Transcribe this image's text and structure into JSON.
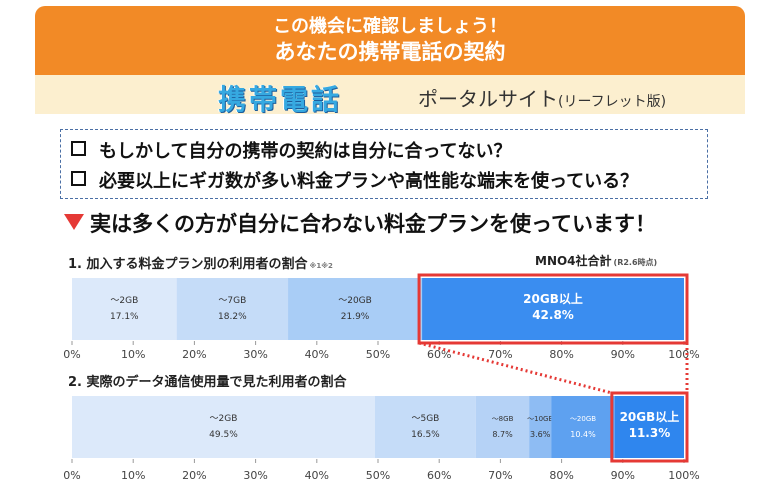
{
  "banner": {
    "line1": "この機会に確認しましょう！",
    "line2": "あなたの携帯電話の契約",
    "portal_kanji": "携帯電話",
    "portal_rest": "ポータルサイト",
    "portal_suffix": "(リーフレット版)"
  },
  "checklist": [
    "もしかして自分の携帯の契約は自分に合ってない？",
    "必要以上にギガ数が多い料金プランや高性能な端末を使っている？"
  ],
  "headline": "実は多くの方が自分に合わない料金プランを使っています！",
  "colors": {
    "banner": "#f28a26",
    "highlight_box": "#e53935",
    "seg_light": "#dce9fa",
    "seg_mid": "#c5dcf8",
    "seg_mid2": "#a9cdf6",
    "seg_strong": "#3a8df0"
  },
  "chart_data": [
    {
      "type": "bar",
      "orientation": "horizontal-stacked-100",
      "title": "1. 加入する料金プラン別の利用者の割合",
      "note": "※1※2",
      "subtitle": "MNO4社合計",
      "subtitle_note": "(R2.6時点)",
      "xlim": [
        0,
        100
      ],
      "ticks": [
        "0%",
        "10%",
        "20%",
        "30%",
        "40%",
        "50%",
        "60%",
        "70%",
        "80%",
        "90%",
        "100%"
      ],
      "segments": [
        {
          "label": "～2GB",
          "value": 17.1,
          "value_text": "17.1%",
          "color": "#dce9fa",
          "text_color": "#333333"
        },
        {
          "label": "～7GB",
          "value": 18.2,
          "value_text": "18.2%",
          "color": "#c5dcf8",
          "text_color": "#333333"
        },
        {
          "label": "～20GB",
          "value": 21.9,
          "value_text": "21.9%",
          "color": "#a9cdf6",
          "text_color": "#333333"
        },
        {
          "label": "20GB以上",
          "value": 42.8,
          "value_text": "42.8%",
          "color": "#3a8df0",
          "text_color": "#ffffff",
          "highlight": true
        }
      ]
    },
    {
      "type": "bar",
      "orientation": "horizontal-stacked-100",
      "title": "2. 実際のデータ通信使用量で見た利用者の割合",
      "xlim": [
        0,
        100
      ],
      "ticks": [
        "0%",
        "10%",
        "20%",
        "30%",
        "40%",
        "50%",
        "60%",
        "70%",
        "80%",
        "90%",
        "100%"
      ],
      "segments": [
        {
          "label": "～2GB",
          "value": 49.5,
          "value_text": "49.5%",
          "color": "#dce9fa",
          "text_color": "#333333"
        },
        {
          "label": "～5GB",
          "value": 16.5,
          "value_text": "16.5%",
          "color": "#c5dcf8",
          "text_color": "#333333"
        },
        {
          "label": "～8GB",
          "value": 8.7,
          "value_text": "8.7%",
          "color": "#b5d2f6",
          "text_color": "#333333",
          "small": true
        },
        {
          "label": "～10GB",
          "value": 3.6,
          "value_text": "3.6%",
          "color": "#8ebcf3",
          "text_color": "#333333",
          "small": true
        },
        {
          "label": "～20GB",
          "value": 10.4,
          "value_text": "10.4%",
          "color": "#5ea1f0",
          "text_color": "#ffffff",
          "small": true
        },
        {
          "label": "20GB以上",
          "value": 11.3,
          "value_text": "11.3%",
          "color": "#2f86ee",
          "text_color": "#ffffff",
          "highlight": true
        }
      ]
    }
  ]
}
